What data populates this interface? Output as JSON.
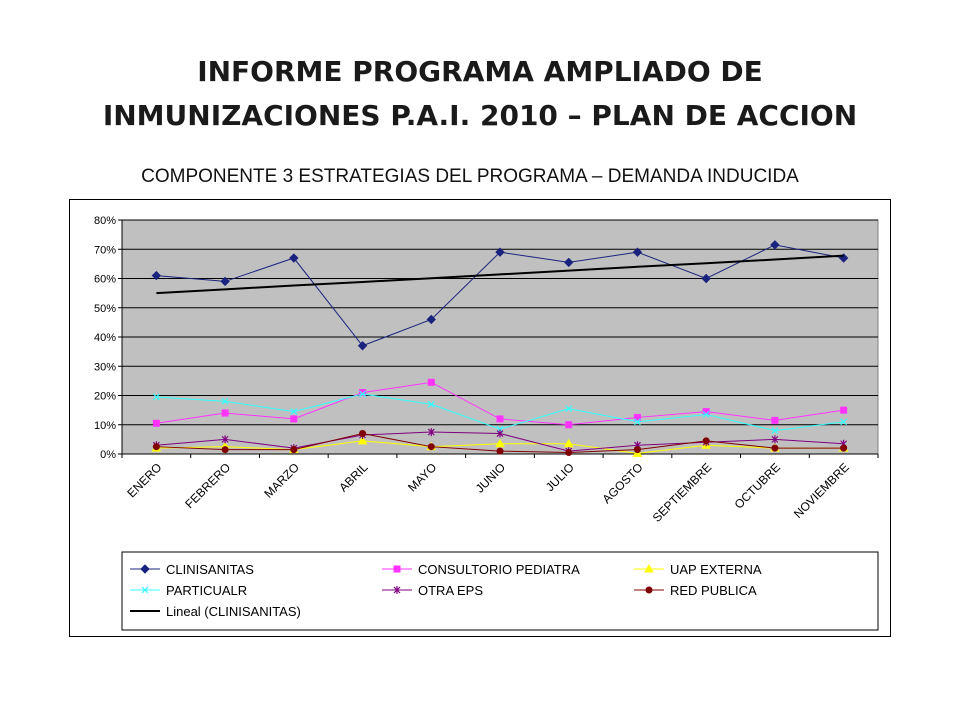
{
  "page": {
    "title_line1": "INFORME PROGRAMA AMPLIADO DE",
    "title_line2": "INMUNIZACIONES P.A.I. 2010 – PLAN DE ACCION",
    "subtitle": "COMPONENTE 3  ESTRATEGIAS DEL PROGRAMA – DEMANDA INDUCIDA"
  },
  "chart_data": {
    "type": "line",
    "title": "",
    "xlabel": "",
    "ylabel": "",
    "ylim": [
      0,
      80
    ],
    "y_ticks": [
      0,
      10,
      20,
      30,
      40,
      50,
      60,
      70,
      80
    ],
    "y_tick_labels": [
      "0%",
      "10%",
      "20%",
      "30%",
      "40%",
      "50%",
      "60%",
      "70%",
      "80%"
    ],
    "grid": true,
    "plot_background": "#c0c0c0",
    "legend_position": "bottom",
    "categories": [
      "ENERO",
      "FEBRERO",
      "MARZO",
      "ABRIL",
      "MAYO",
      "JUNIO",
      "JULIO",
      "AGOSTO",
      "SEPTIEMBRE",
      "OCTUBRE",
      "NOVIEMBRE"
    ],
    "series": [
      {
        "name": "CLINISANITAS",
        "color": "#1a237e",
        "marker": "diamond",
        "values": [
          61,
          59,
          67,
          37,
          46,
          69,
          65.5,
          69,
          60,
          71.5,
          67
        ]
      },
      {
        "name": "CONSULTORIO PEDIATRA",
        "color": "#ff33ff",
        "marker": "square",
        "values": [
          10.5,
          14,
          12,
          21,
          24.5,
          12,
          10,
          12.5,
          14.5,
          11.5,
          15
        ]
      },
      {
        "name": "UAP EXTERNA",
        "color": "#ffff00",
        "marker": "triangle",
        "values": [
          2,
          2.5,
          1.5,
          4.5,
          2.5,
          3.5,
          3.5,
          0.2,
          3,
          2,
          2
        ]
      },
      {
        "name": "PARTICUALR",
        "color": "#33ffff",
        "marker": "x",
        "values": [
          19.5,
          18,
          14.5,
          20.5,
          17,
          8.5,
          15.5,
          11,
          13.5,
          8,
          11
        ]
      },
      {
        "name": "OTRA EPS",
        "color": "#800080",
        "marker": "star",
        "values": [
          3,
          5,
          2,
          6.5,
          7.5,
          7,
          1,
          3,
          4,
          5,
          3.5
        ]
      },
      {
        "name": "RED PUBLICA",
        "color": "#800000",
        "marker": "circle",
        "values": [
          2.5,
          1.5,
          1.5,
          7,
          2.5,
          1,
          0.5,
          1.5,
          4.5,
          2,
          2
        ]
      },
      {
        "name": "Lineal (CLINISANITAS)",
        "color": "#000000",
        "marker": "none",
        "trend": true,
        "values": [
          55,
          56.3,
          57.6,
          58.8,
          60.1,
          61.4,
          62.7,
          64,
          65.2,
          66.5,
          67.8
        ]
      }
    ]
  }
}
